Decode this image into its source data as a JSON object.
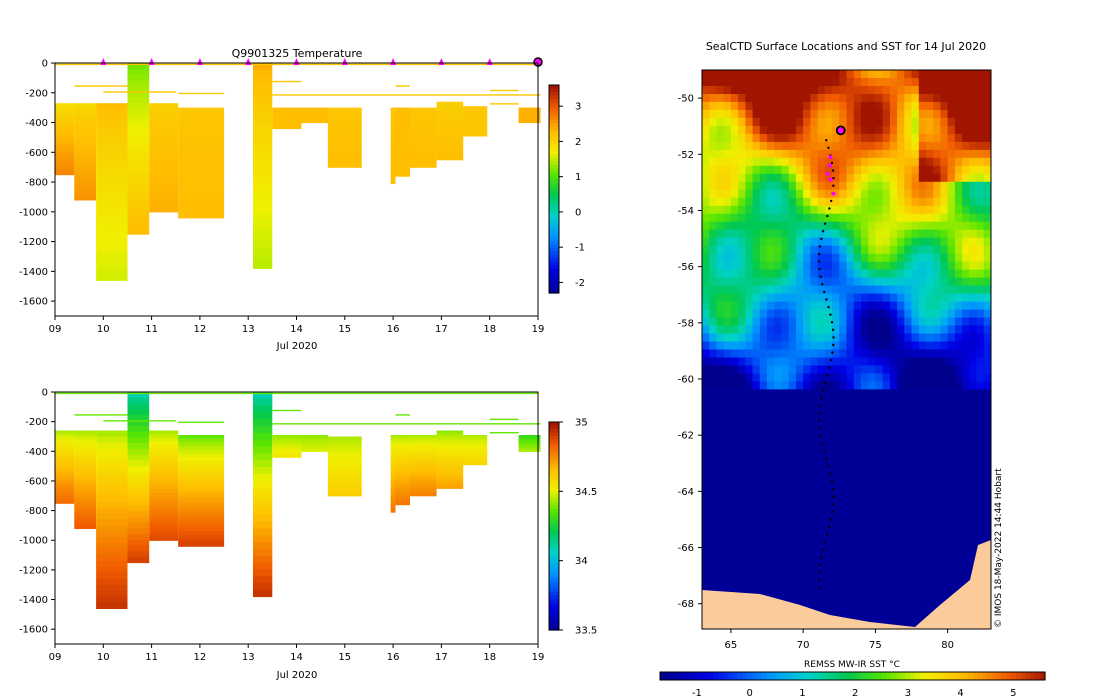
{
  "chart_data": [
    {
      "type": "heatmap",
      "id": "temp",
      "title": "Q9901325  Temperature",
      "xlabel": "Jul 2020",
      "xlim": [
        9,
        19
      ],
      "x_ticks": [
        "09",
        "10",
        "11",
        "12",
        "13",
        "14",
        "15",
        "16",
        "17",
        "18",
        "19"
      ],
      "ylim": [
        -1700,
        0
      ],
      "y_ticks": [
        0,
        -200,
        -400,
        -600,
        -800,
        -1000,
        -1200,
        -1400,
        -1600
      ],
      "y_tick_labels": [
        "0",
        "-200",
        "-400",
        "-600",
        "-800",
        "-1000",
        "-1200",
        "-1400",
        "-1600"
      ],
      "colorbar_range": [
        -2.3,
        3.6
      ],
      "colorbar_ticks": [
        3,
        2,
        1,
        0,
        -1,
        -2
      ],
      "colorbar_tick_labels": [
        "3",
        "2",
        "1",
        "0",
        "-1",
        "-2"
      ],
      "profile_markers_x": [
        10,
        11,
        12,
        13,
        14,
        15,
        16,
        17,
        18,
        19
      ],
      "profiles": [
        {
          "x0": 9.0,
          "x1": 9.4,
          "top": -270,
          "bottom": -750,
          "surface": 1.9,
          "deep": 2.7
        },
        {
          "x0": 9.4,
          "x1": 9.85,
          "top": -270,
          "bottom": -920,
          "surface": 2.0,
          "deep": 2.6
        },
        {
          "x0": 9.85,
          "x1": 10.5,
          "top": -270,
          "bottom": -1460,
          "surface": 2.3,
          "deep": 1.6
        },
        {
          "x0": 10.5,
          "x1": 10.95,
          "top": 0,
          "bottom": -1150,
          "surface": 1.2,
          "deep": 2.3
        },
        {
          "x0": 10.95,
          "x1": 11.55,
          "top": -270,
          "bottom": -1000,
          "surface": 2.1,
          "deep": 2.4
        },
        {
          "x0": 11.55,
          "x1": 12.5,
          "top": -300,
          "bottom": -1040,
          "surface": 2.2,
          "deep": 2.3
        },
        {
          "x0": 13.1,
          "x1": 13.5,
          "top": 0,
          "bottom": -1380,
          "surface": 2.4,
          "deep": 1.5
        },
        {
          "x0": 13.5,
          "x1": 14.1,
          "top": -300,
          "bottom": -440,
          "surface": 2.3,
          "deep": 2.3
        },
        {
          "x0": 14.1,
          "x1": 14.65,
          "top": -300,
          "bottom": -400,
          "surface": 2.3,
          "deep": 2.3
        },
        {
          "x0": 14.65,
          "x1": 15.35,
          "top": -300,
          "bottom": -700,
          "surface": 2.2,
          "deep": 2.3
        },
        {
          "x0": 15.95,
          "x1": 16.05,
          "top": -300,
          "bottom": -810,
          "surface": 2.2,
          "deep": 2.3
        },
        {
          "x0": 16.05,
          "x1": 16.35,
          "top": -300,
          "bottom": -760,
          "surface": 2.3,
          "deep": 2.3
        },
        {
          "x0": 16.35,
          "x1": 16.9,
          "top": -300,
          "bottom": -700,
          "surface": 2.2,
          "deep": 2.3
        },
        {
          "x0": 16.9,
          "x1": 17.45,
          "top": -260,
          "bottom": -650,
          "surface": 2.1,
          "deep": 2.3
        },
        {
          "x0": 17.45,
          "x1": 17.95,
          "top": -290,
          "bottom": -490,
          "surface": 2.2,
          "deep": 2.2
        },
        {
          "x0": 18.6,
          "x1": 19.05,
          "top": -300,
          "bottom": -400,
          "surface": 2.4,
          "deep": 2.4
        }
      ]
    },
    {
      "type": "heatmap",
      "id": "salt",
      "title": "",
      "xlabel": "Jul 2020",
      "xlim": [
        9,
        19
      ],
      "x_ticks": [
        "09",
        "10",
        "11",
        "12",
        "13",
        "14",
        "15",
        "16",
        "17",
        "18",
        "19"
      ],
      "ylim": [
        -1700,
        0
      ],
      "y_ticks": [
        0,
        -200,
        -400,
        -600,
        -800,
        -1000,
        -1200,
        -1400,
        -1600
      ],
      "y_tick_labels": [
        "0",
        "-200",
        "-400",
        "-600",
        "-800",
        "-1000",
        "-1200",
        "-1400",
        "-1600"
      ],
      "colorbar_range": [
        33.5,
        35.0
      ],
      "colorbar_ticks": [
        35,
        34.5,
        34,
        33.5
      ],
      "colorbar_tick_labels": [
        "35",
        "34.5",
        "34",
        "33.5"
      ],
      "profiles": [
        {
          "x0": 9.0,
          "x1": 9.4,
          "top": -260,
          "bottom": -750,
          "surface": 34.45,
          "deep": 34.82
        },
        {
          "x0": 9.4,
          "x1": 9.85,
          "top": -260,
          "bottom": -920,
          "surface": 34.45,
          "deep": 34.85
        },
        {
          "x0": 9.85,
          "x1": 10.5,
          "top": -260,
          "bottom": -1460,
          "surface": 34.45,
          "deep": 34.93
        },
        {
          "x0": 10.5,
          "x1": 10.95,
          "top": 0,
          "bottom": -1150,
          "surface": 34.1,
          "deep": 34.9
        },
        {
          "x0": 10.95,
          "x1": 11.55,
          "top": -260,
          "bottom": -1000,
          "surface": 34.45,
          "deep": 34.88
        },
        {
          "x0": 11.55,
          "x1": 12.5,
          "top": -290,
          "bottom": -1040,
          "surface": 34.38,
          "deep": 34.9
        },
        {
          "x0": 13.1,
          "x1": 13.5,
          "top": 0,
          "bottom": -1380,
          "surface": 34.1,
          "deep": 34.93
        },
        {
          "x0": 13.5,
          "x1": 14.1,
          "top": -290,
          "bottom": -440,
          "surface": 34.42,
          "deep": 34.55
        },
        {
          "x0": 14.1,
          "x1": 14.65,
          "top": -290,
          "bottom": -400,
          "surface": 34.42,
          "deep": 34.5
        },
        {
          "x0": 14.65,
          "x1": 15.35,
          "top": -300,
          "bottom": -700,
          "surface": 34.45,
          "deep": 34.62
        },
        {
          "x0": 15.95,
          "x1": 16.05,
          "top": -290,
          "bottom": -810,
          "surface": 34.45,
          "deep": 34.8
        },
        {
          "x0": 16.05,
          "x1": 16.35,
          "top": -290,
          "bottom": -760,
          "surface": 34.45,
          "deep": 34.8
        },
        {
          "x0": 16.35,
          "x1": 16.9,
          "top": -290,
          "bottom": -700,
          "surface": 34.45,
          "deep": 34.78
        },
        {
          "x0": 16.9,
          "x1": 17.45,
          "top": -260,
          "bottom": -650,
          "surface": 34.42,
          "deep": 34.72
        },
        {
          "x0": 17.45,
          "x1": 17.95,
          "top": -290,
          "bottom": -490,
          "surface": 34.45,
          "deep": 34.6
        },
        {
          "x0": 18.6,
          "x1": 19.05,
          "top": -290,
          "bottom": -400,
          "surface": 34.3,
          "deep": 34.45
        }
      ]
    },
    {
      "type": "heatmap",
      "id": "map",
      "title": "SealCTD Surface Locations and SST for 14 Jul 2020",
      "xlabel": "REMSS MW-IR SST °C",
      "xlim": [
        63,
        83
      ],
      "ylim": [
        -68.9,
        -49
      ],
      "x_ticks": [
        65,
        70,
        75,
        80
      ],
      "x_tick_labels": [
        "65",
        "70",
        "75",
        "80"
      ],
      "y_ticks": [
        -50,
        -52,
        -54,
        -56,
        -58,
        -60,
        -62,
        -64,
        -66,
        -68
      ],
      "y_tick_labels": [
        "-50",
        "-52",
        "-54",
        "-56",
        "-58",
        "-60",
        "-62",
        "-64",
        "-66",
        "-68"
      ],
      "colorbar_range": [
        -1.7,
        5.6
      ],
      "colorbar_ticks": [
        -1,
        0,
        1,
        2,
        3,
        4,
        5
      ],
      "colorbar_tick_labels": [
        "-1",
        "0",
        "1",
        "2",
        "3",
        "4",
        "5"
      ],
      "credit": "© IMOS 18-May-2022 14:44 Hobart",
      "current_location": {
        "lon": 72.6,
        "lat": -51.15
      }
    }
  ],
  "colors": {
    "land": "#fccb9c",
    "marker_magenta": "#ff00ff"
  }
}
